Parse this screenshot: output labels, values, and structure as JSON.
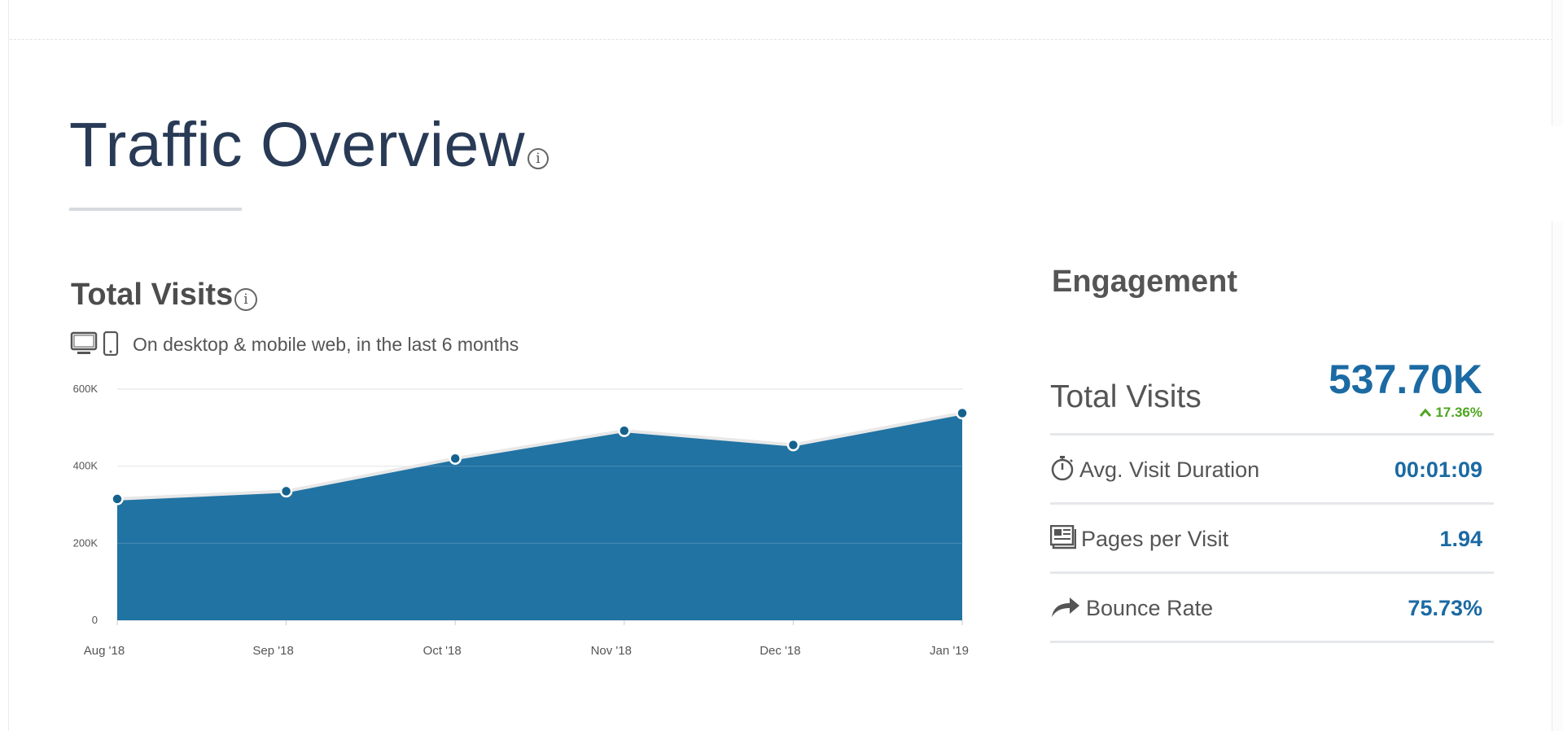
{
  "header": {
    "title": "Traffic Overview",
    "info_glyph": "i"
  },
  "total_visits": {
    "title": "Total Visits",
    "info_glyph": "i",
    "scope_text": "On desktop & mobile web, in the last 6 months",
    "icons": [
      "desktop-icon",
      "mobile-icon"
    ]
  },
  "chart_data": {
    "type": "area",
    "title": "Total Visits",
    "categories": [
      "Aug '18",
      "Sep '18",
      "Oct '18",
      "Nov '18",
      "Dec '18",
      "Jan '19"
    ],
    "values": [
      315000,
      335000,
      420000,
      492000,
      455000,
      537700
    ],
    "y_ticks": [
      0,
      200000,
      400000,
      600000
    ],
    "y_tick_labels": [
      "0",
      "200K",
      "400K",
      "600K"
    ],
    "ylim": [
      0,
      600000
    ],
    "grid": true,
    "colors": {
      "area": "#2173a3",
      "line": "#e8e8e8",
      "point": "#15628f",
      "grid": "#e6e6e6",
      "tick_text": "#555555"
    }
  },
  "engagement": {
    "title": "Engagement",
    "main_metric": {
      "label": "Total Visits",
      "value": "537.70K",
      "change": "17.36%",
      "change_direction": "up",
      "change_color": "#4fa51f"
    },
    "rows": [
      {
        "icon": "stopwatch-icon",
        "label": "Avg. Visit Duration",
        "value": "00:01:09"
      },
      {
        "icon": "pages-icon",
        "label": "Pages per Visit",
        "value": "1.94"
      },
      {
        "icon": "share-arrow-icon",
        "label": "Bounce Rate",
        "value": "75.73%"
      }
    ],
    "accent_color": "#1b6aa3"
  }
}
